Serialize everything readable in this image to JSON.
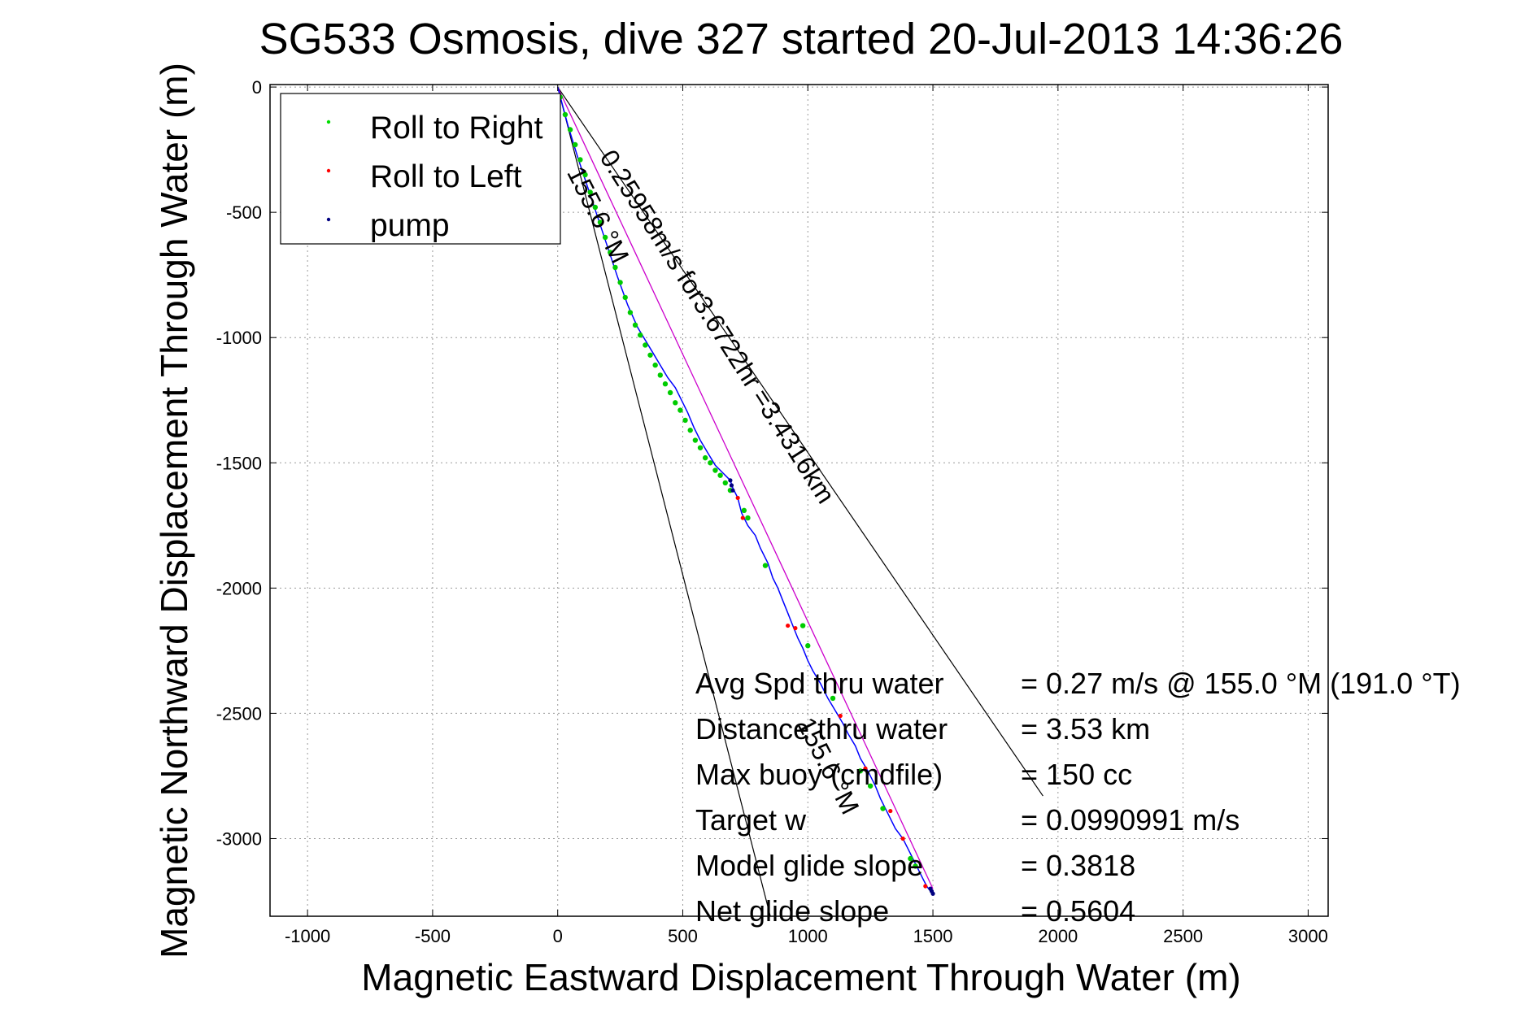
{
  "chart_data": {
    "type": "line",
    "title": "SG533 Osmosis, dive 327 started 20-Jul-2013 14:36:26",
    "xlabel": "Magnetic Eastward Displacement Through Water (m)",
    "ylabel": "Magnetic Northward Displacement Through Water (m)",
    "xlim": [
      -1150,
      3080
    ],
    "ylim": [
      -3310,
      10
    ],
    "xticks": [
      -1000,
      -500,
      0,
      500,
      1000,
      1500,
      2000,
      2500,
      3000
    ],
    "yticks": [
      0,
      -500,
      -1000,
      -1500,
      -2000,
      -2500,
      -3000
    ],
    "xtick_labels": [
      "-1000",
      "-500",
      "0",
      "500",
      "1000",
      "1500",
      "2000",
      "2500",
      "3000"
    ],
    "ytick_labels": [
      "0",
      "-500",
      "-1000",
      "-1500",
      "-2000",
      "-2500",
      "-3000"
    ],
    "grid": true,
    "legend_position": "top-left",
    "legend": [
      {
        "label": "Roll to Right",
        "color": "#00dd00"
      },
      {
        "label": "Roll to Left",
        "color": "#ff0000"
      },
      {
        "label": "pump",
        "color": "#000080"
      }
    ],
    "colors": {
      "track": "#0000ff",
      "roll_right": "#00cc00",
      "roll_left": "#ff0000",
      "pump": "#000080",
      "model_track": "#cc00cc",
      "guide": "#000000"
    },
    "track_x": [
      0,
      40,
      80,
      120,
      160,
      200,
      240,
      280,
      320,
      350,
      380,
      410,
      440,
      470,
      500,
      520,
      545,
      570,
      600,
      630,
      660,
      690,
      700,
      720,
      735,
      760,
      790,
      810,
      840,
      860,
      880,
      900,
      920,
      940,
      960,
      980,
      1000,
      1020,
      1050,
      1080,
      1110,
      1140,
      1160,
      1190,
      1210,
      1240,
      1270,
      1290,
      1320,
      1350,
      1380,
      1400,
      1420,
      1440,
      1460,
      1475,
      1490,
      1500
    ],
    "track_y": [
      0,
      -150,
      -280,
      -400,
      -520,
      -640,
      -760,
      -870,
      -960,
      -1010,
      -1060,
      -1110,
      -1160,
      -1200,
      -1260,
      -1300,
      -1360,
      -1410,
      -1460,
      -1510,
      -1540,
      -1570,
      -1600,
      -1640,
      -1700,
      -1750,
      -1790,
      -1840,
      -1900,
      -1960,
      -2000,
      -2050,
      -2100,
      -2150,
      -2200,
      -2240,
      -2290,
      -2330,
      -2380,
      -2440,
      -2490,
      -2540,
      -2580,
      -2630,
      -2680,
      -2730,
      -2790,
      -2840,
      -2900,
      -2960,
      -3000,
      -3040,
      -3080,
      -3120,
      -3160,
      -3190,
      -3210,
      -3220
    ],
    "roll_right_x": [
      10,
      30,
      50,
      70,
      90,
      110,
      130,
      150,
      170,
      190,
      210,
      230,
      250,
      270,
      290,
      310,
      330,
      350,
      370,
      390,
      410,
      430,
      450,
      470,
      490,
      510,
      530,
      550,
      570,
      590,
      610,
      630,
      650,
      670,
      690,
      745,
      760,
      830,
      980,
      1000,
      1100,
      1210,
      1250,
      1300,
      1410,
      1430
    ],
    "roll_right_y": [
      -40,
      -110,
      -170,
      -230,
      -290,
      -350,
      -420,
      -480,
      -540,
      -600,
      -660,
      -720,
      -780,
      -840,
      -900,
      -950,
      -990,
      -1030,
      -1070,
      -1110,
      -1150,
      -1185,
      -1220,
      -1260,
      -1290,
      -1330,
      -1370,
      -1410,
      -1440,
      -1480,
      -1500,
      -1530,
      -1550,
      -1580,
      -1610,
      -1690,
      -1720,
      -1910,
      -2150,
      -2230,
      -2440,
      -2730,
      -2790,
      -2880,
      -3080,
      -3110
    ],
    "roll_left_x": [
      720,
      740,
      920,
      950,
      1130,
      1230,
      1330,
      1380,
      1470
    ],
    "roll_left_y": [
      -1640,
      -1720,
      -2150,
      -2160,
      -2510,
      -2720,
      -2890,
      -3000,
      -3190
    ],
    "pump_x": [
      690,
      695,
      700,
      1490,
      1495,
      1500
    ],
    "pump_y": [
      -1570,
      -1590,
      -1610,
      -3200,
      -3210,
      -3220
    ],
    "model_track_x": [
      0,
      150,
      300,
      450,
      600,
      750,
      900,
      1050,
      1200,
      1350,
      1500
    ],
    "model_track_y": [
      0,
      -320,
      -640,
      -960,
      -1280,
      -1600,
      -1920,
      -2240,
      -2560,
      -2880,
      -3200
    ],
    "guide_lines": [
      {
        "x": [
          0,
          850
        ],
        "y": [
          0,
          -3310
        ]
      },
      {
        "x": [
          0,
          1940
        ],
        "y": [
          0,
          -2830
        ]
      }
    ],
    "rotated_labels": [
      {
        "text": "0.25958m/s for3.6722hr =3.4316km",
        "x": 165,
        "y": -280,
        "angle": 57.5
      },
      {
        "text": "155.6 °M",
        "x": 35,
        "y": -340,
        "angle": 63
      },
      {
        "text": "155.6 °M",
        "x": 955,
        "y": -2540,
        "angle": 63
      }
    ],
    "annotations": [
      {
        "label": "Avg Spd thru water",
        "value": "=  0.27 m/s @ 155.0 °M (191.0 °T)"
      },
      {
        "label": "Distance thru water",
        "value": "=  3.53 km"
      },
      {
        "label": "Max buoy (cmdfile)",
        "value": "= 150 cc"
      },
      {
        "label": "Target w",
        "value": "= 0.0990991 m/s"
      },
      {
        "label": "Model glide slope",
        "value": "= 0.3818"
      },
      {
        "label": "Net glide slope",
        "value": "= 0.5604"
      }
    ]
  }
}
